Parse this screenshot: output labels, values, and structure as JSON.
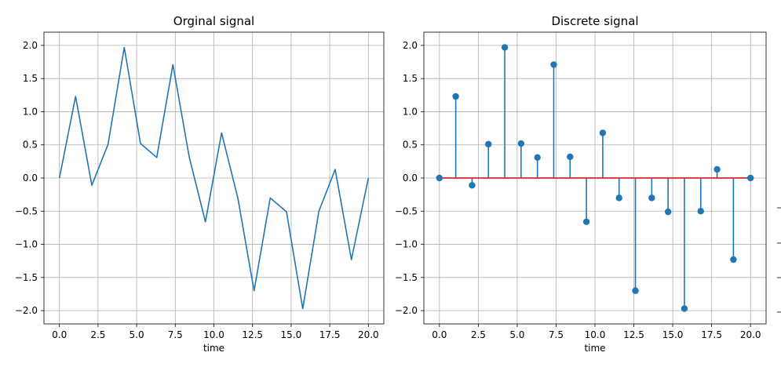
{
  "chart_data": [
    {
      "type": "line",
      "title": "Orginal signal",
      "xlabel": "time",
      "ylabel": "",
      "xlim": [
        -1.0,
        21.0
      ],
      "ylim": [
        -2.2,
        2.2
      ],
      "grid": true,
      "x_ticks": [
        "0.0",
        "2.5",
        "5.0",
        "7.5",
        "10.0",
        "12.5",
        "15.0",
        "17.5",
        "20.0"
      ],
      "y_ticks": [
        "2.0",
        "1.5",
        "1.0",
        "0.5",
        "0.0",
        "−0.5",
        "−1.0",
        "−1.5",
        "−2.0"
      ],
      "color": "#1f77b4",
      "x": [
        0.0,
        1.05,
        2.1,
        3.15,
        4.2,
        5.25,
        6.3,
        7.35,
        8.4,
        9.45,
        10.5,
        11.55,
        12.6,
        13.65,
        14.7,
        15.75,
        16.8,
        17.85,
        18.9,
        20.0
      ],
      "y": [
        0.0,
        1.23,
        -0.11,
        0.51,
        1.97,
        0.52,
        0.31,
        1.71,
        0.32,
        -0.66,
        0.68,
        -0.3,
        -1.7,
        -0.3,
        -0.51,
        -1.97,
        -0.5,
        0.13,
        -1.23,
        0.0
      ]
    },
    {
      "type": "stem",
      "title": "Discrete signal",
      "xlabel": "time",
      "ylabel": "",
      "xlim": [
        -1.0,
        21.0
      ],
      "ylim": [
        -2.2,
        2.2
      ],
      "grid": true,
      "x_ticks": [
        "0.0",
        "2.5",
        "5.0",
        "7.5",
        "10.0",
        "12.5",
        "15.0",
        "17.5",
        "20.0"
      ],
      "y_ticks": [
        "2.0",
        "1.5",
        "1.0",
        "0.5",
        "0.0",
        "−0.5",
        "−1.0",
        "−1.5",
        "−2.0"
      ],
      "stem_color": "#1f77b4",
      "baseline_color": "#d62728",
      "x": [
        0.0,
        1.05,
        2.1,
        3.15,
        4.2,
        5.25,
        6.3,
        7.35,
        8.4,
        9.45,
        10.5,
        11.55,
        12.6,
        13.65,
        14.7,
        15.75,
        16.8,
        17.85,
        18.9,
        20.0
      ],
      "y": [
        0.0,
        1.23,
        -0.11,
        0.51,
        1.97,
        0.52,
        0.31,
        1.71,
        0.32,
        -0.66,
        0.68,
        -0.3,
        -1.7,
        -0.3,
        -0.51,
        -1.97,
        -0.5,
        0.13,
        -1.23,
        0.0
      ]
    }
  ]
}
